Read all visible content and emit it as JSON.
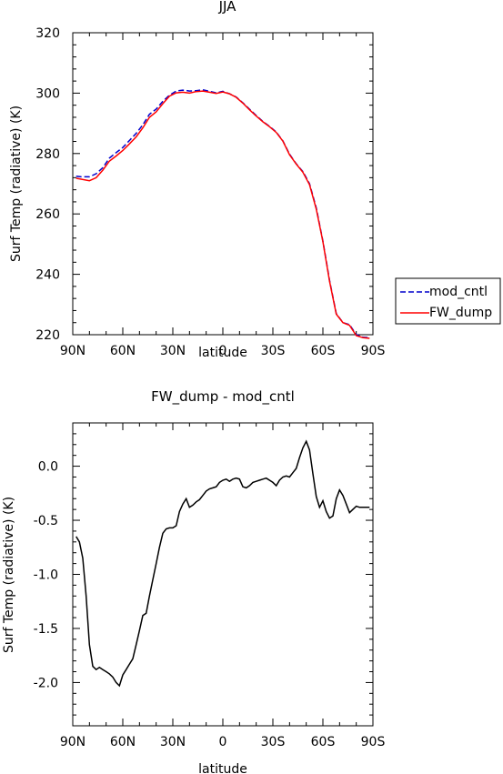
{
  "chart_data": [
    {
      "type": "line",
      "title": "JJA",
      "xlabel": "latitude",
      "ylabel": "Surf Temp (radiative) (K)",
      "xlim": [
        90,
        -90
      ],
      "ylim": [
        220,
        320
      ],
      "x_ticks": [
        {
          "v": 90,
          "label": "90N"
        },
        {
          "v": 60,
          "label": "60N"
        },
        {
          "v": 30,
          "label": "30N"
        },
        {
          "v": 0,
          "label": "0"
        },
        {
          "v": -30,
          "label": "30S"
        },
        {
          "v": -60,
          "label": "60S"
        },
        {
          "v": -90,
          "label": "90S"
        }
      ],
      "y_ticks": [
        {
          "v": 220,
          "label": "220"
        },
        {
          "v": 240,
          "label": "240"
        },
        {
          "v": 260,
          "label": "260"
        },
        {
          "v": 280,
          "label": "280"
        },
        {
          "v": 300,
          "label": "300"
        },
        {
          "v": 320,
          "label": "320"
        }
      ],
      "legend_position": "right",
      "series": [
        {
          "name": "mod_cntl",
          "color": "#0000cc",
          "dash": true,
          "x": [
            88,
            85,
            80,
            76,
            72,
            68,
            64,
            60,
            56,
            52,
            48,
            44,
            40,
            36,
            32,
            28,
            24,
            20,
            16,
            12,
            8,
            4,
            0,
            -4,
            -8,
            -12,
            -16,
            -20,
            -24,
            -28,
            -32,
            -36,
            -40,
            -44,
            -48,
            -52,
            -56,
            -60,
            -64,
            -68,
            -72,
            -76,
            -80,
            -84,
            -88
          ],
          "y": [
            272.5,
            272.3,
            272.3,
            273.3,
            275.3,
            278.5,
            280.3,
            282.0,
            284.3,
            286.7,
            289.5,
            293.0,
            294.7,
            297.3,
            299.3,
            300.7,
            301.0,
            300.7,
            300.8,
            301.1,
            300.6,
            300.1,
            300.6,
            299.8,
            298.7,
            296.8,
            294.7,
            292.6,
            290.6,
            289.0,
            287.1,
            284.2,
            279.8,
            276.6,
            274.0,
            270.0,
            262.0,
            251.0,
            238.0,
            227.0,
            224.0,
            223.3,
            220.0,
            219.2,
            219.0
          ]
        },
        {
          "name": "FW_dump",
          "color": "#ff0000",
          "dash": false,
          "x": [
            88,
            85,
            80,
            76,
            72,
            68,
            64,
            60,
            56,
            52,
            48,
            44,
            40,
            36,
            32,
            28,
            24,
            20,
            16,
            12,
            8,
            4,
            0,
            -4,
            -8,
            -12,
            -16,
            -20,
            -24,
            -28,
            -32,
            -36,
            -40,
            -44,
            -48,
            -52,
            -56,
            -60,
            -64,
            -68,
            -72,
            -76,
            -80,
            -84,
            -88
          ],
          "y": [
            271.8,
            271.5,
            271.0,
            272.0,
            274.5,
            277.5,
            279.2,
            281.0,
            283.2,
            285.5,
            288.5,
            292.0,
            293.8,
            296.5,
            299.0,
            300.1,
            300.3,
            300.0,
            300.5,
            300.7,
            300.3,
            299.9,
            300.4,
            299.8,
            298.6,
            296.7,
            294.5,
            292.4,
            290.5,
            288.9,
            287.0,
            284.1,
            279.6,
            276.5,
            273.8,
            269.7,
            261.6,
            250.8,
            237.7,
            226.8,
            224.0,
            223.1,
            219.7,
            219.0,
            218.8
          ]
        }
      ]
    },
    {
      "type": "line",
      "title": "FW_dump - mod_cntl",
      "xlabel": "latitude",
      "ylabel": "Surf Temp (radiative) (K)",
      "xlim": [
        90,
        -90
      ],
      "ylim": [
        -2.4,
        0.4
      ],
      "x_ticks": [
        {
          "v": 90,
          "label": "90N"
        },
        {
          "v": 60,
          "label": "60N"
        },
        {
          "v": 30,
          "label": "30N"
        },
        {
          "v": 0,
          "label": "0"
        },
        {
          "v": -30,
          "label": "30S"
        },
        {
          "v": -60,
          "label": "60S"
        },
        {
          "v": -90,
          "label": "90S"
        }
      ],
      "y_ticks": [
        {
          "v": 0.0,
          "label": "0.0"
        },
        {
          "v": -0.5,
          "label": "-0.5"
        },
        {
          "v": -1.0,
          "label": "-1.0"
        },
        {
          "v": -1.5,
          "label": "-1.5"
        },
        {
          "v": -2.0,
          "label": "-2.0"
        }
      ],
      "series": [
        {
          "color": "#000000",
          "x": [
            88,
            86,
            84,
            82,
            80,
            78,
            76,
            74,
            72,
            70,
            68,
            66,
            64,
            62,
            60,
            58,
            56,
            54,
            52,
            50,
            48,
            46,
            44,
            42,
            40,
            38,
            36,
            34,
            32,
            30,
            28,
            26,
            24,
            22,
            20,
            18,
            16,
            14,
            12,
            10,
            8,
            6,
            4,
            2,
            0,
            -2,
            -4,
            -6,
            -8,
            -10,
            -12,
            -14,
            -16,
            -18,
            -20,
            -22,
            -24,
            -26,
            -28,
            -30,
            -32,
            -34,
            -36,
            -38,
            -40,
            -42,
            -44,
            -46,
            -48,
            -50,
            -52,
            -54,
            -56,
            -58,
            -60,
            -62,
            -64,
            -66,
            -68,
            -70,
            -72,
            -74,
            -76,
            -78,
            -80,
            -82,
            -84,
            -86,
            -88
          ],
          "y": [
            -0.65,
            -0.7,
            -0.85,
            -1.2,
            -1.65,
            -1.85,
            -1.88,
            -1.86,
            -1.88,
            -1.9,
            -1.92,
            -1.95,
            -2.0,
            -2.03,
            -1.93,
            -1.88,
            -1.83,
            -1.78,
            -1.65,
            -1.52,
            -1.38,
            -1.36,
            -1.2,
            -1.05,
            -0.9,
            -0.75,
            -0.62,
            -0.58,
            -0.57,
            -0.57,
            -0.55,
            -0.42,
            -0.35,
            -0.3,
            -0.38,
            -0.36,
            -0.33,
            -0.31,
            -0.27,
            -0.23,
            -0.21,
            -0.2,
            -0.19,
            -0.15,
            -0.13,
            -0.12,
            -0.14,
            -0.12,
            -0.11,
            -0.12,
            -0.19,
            -0.2,
            -0.18,
            -0.15,
            -0.14,
            -0.13,
            -0.12,
            -0.11,
            -0.13,
            -0.15,
            -0.18,
            -0.13,
            -0.1,
            -0.09,
            -0.1,
            -0.06,
            -0.02,
            0.08,
            0.17,
            0.23,
            0.15,
            -0.07,
            -0.28,
            -0.38,
            -0.32,
            -0.42,
            -0.48,
            -0.46,
            -0.3,
            -0.22,
            -0.27,
            -0.35,
            -0.43,
            -0.4,
            -0.37,
            -0.38,
            -0.38,
            -0.38,
            -0.38
          ]
        }
      ]
    }
  ]
}
